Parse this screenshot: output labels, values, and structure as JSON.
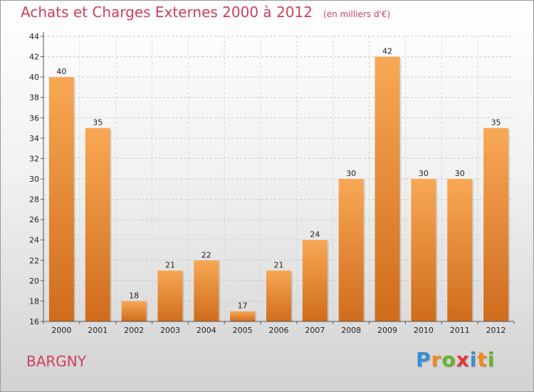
{
  "chart_data": {
    "type": "bar",
    "title": "Achats et Charges Externes 2000 à 2012",
    "subtitle": "(en milliers d'€)",
    "categories": [
      "2000",
      "2001",
      "2002",
      "2003",
      "2004",
      "2005",
      "2006",
      "2007",
      "2008",
      "2009",
      "2010",
      "2011",
      "2012"
    ],
    "values": [
      40,
      35,
      18,
      21,
      22,
      17,
      21,
      24,
      30,
      42,
      30,
      30,
      35
    ],
    "ylim": [
      16,
      44
    ],
    "yticks": [
      16,
      18,
      20,
      22,
      24,
      26,
      28,
      30,
      32,
      34,
      36,
      38,
      40,
      42,
      44
    ],
    "grid": true,
    "bar_color_top": "#f8a855",
    "bar_color_bottom": "#cf6c1c"
  },
  "footer": {
    "commune": "BARGNY",
    "brand": "Proxiti",
    "brand_letter_colors": [
      "#3a8fd6",
      "#f18a1d",
      "#68b42b",
      "#e13a3a",
      "#3a8fd6",
      "#f18a1d",
      "#68b42b"
    ]
  }
}
